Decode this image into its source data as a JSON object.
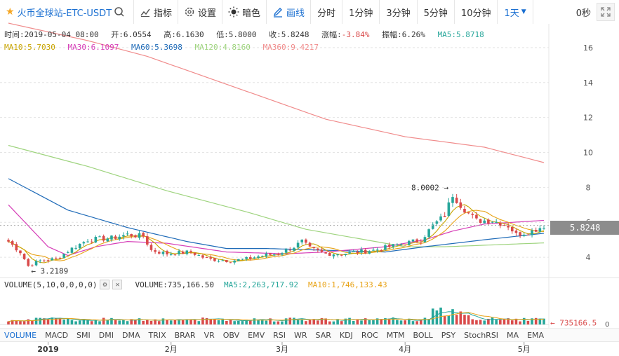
{
  "toolbar": {
    "symbol": "火币全球站-ETC-USDT",
    "indicator_label": "指标",
    "settings_label": "设置",
    "dark_label": "暗色",
    "draw_label": "画线",
    "periods": [
      "分时",
      "1分钟",
      "3分钟",
      "5分钟",
      "10分钟"
    ],
    "active_period": "1天",
    "seconds": "0秒"
  },
  "info": {
    "time": "时间:2019-05-04 08:00",
    "open": "开:6.0554",
    "high": "高:6.1630",
    "low": "低:5.8000",
    "close": "收:5.8248",
    "change_label": "涨幅:",
    "change_value": "-3.84%",
    "amplitude": "振幅:6.26%",
    "ma5": "MA5:5.8718"
  },
  "ma_row": {
    "ma10": "MA10:5.7030",
    "ma30": "MA30:6.1097",
    "ma60": "MA60:5.3698",
    "ma120": "MA120:4.8160",
    "ma360": "MA360:9.4217"
  },
  "volume_info": {
    "title": "VOLUME(5,10,0,0,0,0)",
    "volume": "VOLUME:735,166.50",
    "ma5": "MA5:2,263,717.92",
    "ma10": "MA10:1,746,133.43",
    "last_label": "← 735166.5",
    "zero_label": "0"
  },
  "price_tag": "5.8248",
  "annotations": {
    "high": "8.0002 →",
    "low": "← 3.2189"
  },
  "tabs": [
    "VOLUME",
    "MACD",
    "SMI",
    "DMI",
    "DMA",
    "TRIX",
    "BRAR",
    "VR",
    "OBV",
    "EMV",
    "RSI",
    "WR",
    "SAR",
    "KDJ",
    "ROC",
    "MTM",
    "BOLL",
    "PSY",
    "StochRSI",
    "MA",
    "EMA"
  ],
  "x_labels": [
    {
      "label": "2019",
      "day": 10
    },
    {
      "label": "2月",
      "day": 41
    },
    {
      "label": "3月",
      "day": 69
    },
    {
      "label": "4月",
      "day": 100
    },
    {
      "label": "5月",
      "day": 130
    }
  ],
  "colors": {
    "up": "#d94a4a",
    "down": "#26a69a",
    "ma5": "#c8a400",
    "ma10": "#e8a317",
    "ma30": "#d63fb8",
    "ma60": "#1f6bb8",
    "ma120": "#9fd47f",
    "ma360": "#f08b8b",
    "accent": "#1a6fd1"
  },
  "chart_data": {
    "type": "candlestick",
    "y_ticks": [
      4,
      6,
      8,
      10,
      12,
      14,
      16
    ],
    "ylim": [
      3,
      17
    ],
    "days": 136,
    "close_path": [
      [
        0,
        4.9
      ],
      [
        3,
        4.3
      ],
      [
        5,
        3.5
      ],
      [
        8,
        3.8
      ],
      [
        12,
        3.9
      ],
      [
        16,
        4.5
      ],
      [
        20,
        5.0
      ],
      [
        26,
        5.1
      ],
      [
        30,
        5.3
      ],
      [
        34,
        5.2
      ],
      [
        36,
        4.4
      ],
      [
        40,
        4.2
      ],
      [
        46,
        4.3
      ],
      [
        50,
        3.9
      ],
      [
        56,
        3.8
      ],
      [
        60,
        3.9
      ],
      [
        64,
        4.1
      ],
      [
        68,
        4.2
      ],
      [
        72,
        4.6
      ],
      [
        74,
        4.9
      ],
      [
        76,
        4.5
      ],
      [
        80,
        4.2
      ],
      [
        84,
        4.2
      ],
      [
        88,
        4.3
      ],
      [
        92,
        4.4
      ],
      [
        96,
        4.6
      ],
      [
        100,
        4.8
      ],
      [
        104,
        5.0
      ],
      [
        107,
        5.8
      ],
      [
        110,
        6.4
      ],
      [
        112,
        7.6
      ],
      [
        114,
        7.0
      ],
      [
        116,
        6.5
      ],
      [
        118,
        6.1
      ],
      [
        122,
        6.1
      ],
      [
        126,
        5.8
      ],
      [
        128,
        5.3
      ],
      [
        132,
        5.5
      ],
      [
        135,
        5.8
      ]
    ],
    "ma360": [
      [
        0,
        17.4
      ],
      [
        20,
        16.4
      ],
      [
        35,
        15.5
      ],
      [
        50,
        14.3
      ],
      [
        65,
        13.1
      ],
      [
        80,
        11.9
      ],
      [
        100,
        10.9
      ],
      [
        120,
        10.3
      ],
      [
        135,
        9.42
      ]
    ],
    "ma120": [
      [
        0,
        10.4
      ],
      [
        20,
        9.2
      ],
      [
        40,
        7.8
      ],
      [
        60,
        6.6
      ],
      [
        75,
        5.6
      ],
      [
        90,
        5.0
      ],
      [
        100,
        4.6
      ],
      [
        110,
        4.6
      ],
      [
        135,
        4.82
      ]
    ],
    "ma60": [
      [
        0,
        8.5
      ],
      [
        15,
        6.7
      ],
      [
        30,
        5.7
      ],
      [
        45,
        4.9
      ],
      [
        55,
        4.5
      ],
      [
        65,
        4.5
      ],
      [
        80,
        4.4
      ],
      [
        95,
        4.3
      ],
      [
        105,
        4.6
      ],
      [
        120,
        5.0
      ],
      [
        135,
        5.37
      ]
    ],
    "ma30": [
      [
        0,
        7.0
      ],
      [
        5,
        5.8
      ],
      [
        10,
        4.6
      ],
      [
        15,
        4.1
      ],
      [
        22,
        4.6
      ],
      [
        30,
        4.9
      ],
      [
        40,
        4.8
      ],
      [
        55,
        4.3
      ],
      [
        70,
        4.2
      ],
      [
        80,
        4.3
      ],
      [
        95,
        4.6
      ],
      [
        105,
        5.0
      ],
      [
        112,
        5.5
      ],
      [
        120,
        5.9
      ],
      [
        135,
        6.11
      ]
    ],
    "volume_ylim": [
      0,
      12000000
    ]
  }
}
